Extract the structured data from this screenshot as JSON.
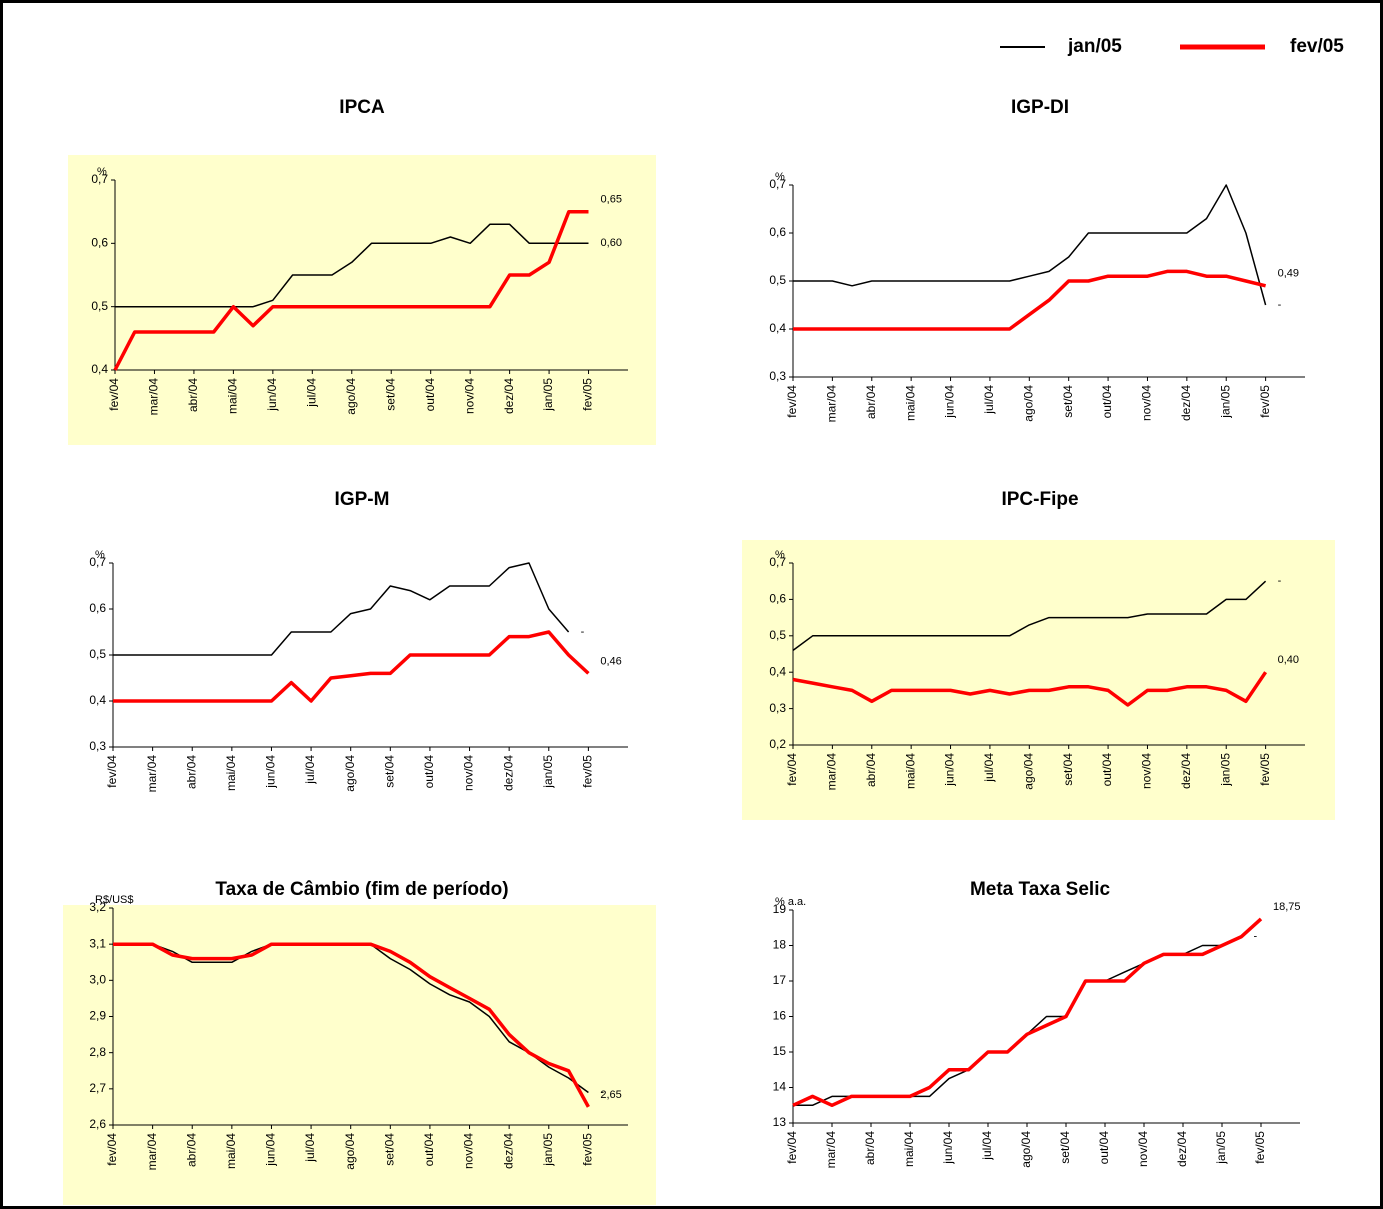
{
  "chart_data": [
    {
      "type": "line",
      "title": "IPCA",
      "y_label": "%",
      "background": "#ffffcc",
      "categories": [
        "fev/04",
        null,
        "mar/04",
        null,
        "abr/04",
        null,
        "mai/04",
        null,
        "jun/04",
        null,
        "jul/04",
        null,
        "ago/04",
        null,
        "set/04",
        null,
        "out/04",
        null,
        "nov/04",
        null,
        "dez/04",
        null,
        "jan/05",
        null,
        "fev/05",
        null,
        null
      ],
      "ylim": [
        0.4,
        0.7
      ],
      "yticks": [
        {
          "value": 0.4,
          "label": "0,4"
        },
        {
          "value": 0.5,
          "label": "0,5"
        },
        {
          "value": 0.6,
          "label": "0,6"
        },
        {
          "value": 0.7,
          "label": "0,7"
        }
      ],
      "series": [
        {
          "name": "jan/05",
          "color": "#000000",
          "end_label": "0,60",
          "values": [
            0.5,
            0.5,
            0.5,
            0.5,
            0.5,
            0.5,
            0.5,
            0.5,
            0.51,
            0.55,
            0.55,
            0.55,
            0.57,
            0.6,
            0.6,
            0.6,
            0.6,
            0.61,
            0.6,
            0.63,
            0.63,
            0.6,
            0.6,
            0.6,
            0.6,
            null,
            null
          ]
        },
        {
          "name": "fev/05",
          "color": "#ff0000",
          "end_label": "0,65",
          "values": [
            0.4,
            0.46,
            0.46,
            0.46,
            0.46,
            0.46,
            0.5,
            0.47,
            0.5,
            0.5,
            0.5,
            0.5,
            0.5,
            0.5,
            0.5,
            0.5,
            0.5,
            0.5,
            0.5,
            0.5,
            0.55,
            0.55,
            0.57,
            0.65,
            0.65,
            null,
            null
          ]
        }
      ]
    },
    {
      "type": "line",
      "title": "IGP-DI",
      "y_label": "%",
      "background": null,
      "categories": [
        "fev/04",
        null,
        "mar/04",
        null,
        "abr/04",
        null,
        "mai/04",
        null,
        "jun/04",
        null,
        "jul/04",
        null,
        "ago/04",
        null,
        "set/04",
        null,
        "out/04",
        null,
        "nov/04",
        null,
        "dez/04",
        null,
        "jan/05",
        null,
        "fev/05",
        null,
        null
      ],
      "ylim": [
        0.3,
        0.7
      ],
      "yticks": [
        {
          "value": 0.3,
          "label": "0,3"
        },
        {
          "value": 0.4,
          "label": "0,4"
        },
        {
          "value": 0.5,
          "label": "0,5"
        },
        {
          "value": 0.6,
          "label": "0,6"
        },
        {
          "value": 0.7,
          "label": "0,7"
        }
      ],
      "series": [
        {
          "name": "jan/05",
          "color": "#000000",
          "end_label": "-",
          "values": [
            0.5,
            0.5,
            0.5,
            0.49,
            0.5,
            0.5,
            0.5,
            0.5,
            0.5,
            0.5,
            0.5,
            0.5,
            0.51,
            0.52,
            0.55,
            0.6,
            0.6,
            0.6,
            0.6,
            0.6,
            0.6,
            0.63,
            0.7,
            0.6,
            0.45,
            null,
            null
          ]
        },
        {
          "name": "fev/05",
          "color": "#ff0000",
          "end_label": "0,49",
          "values": [
            0.4,
            0.4,
            0.4,
            0.4,
            0.4,
            0.4,
            0.4,
            0.4,
            0.4,
            0.4,
            0.4,
            0.4,
            0.43,
            0.46,
            0.5,
            0.5,
            0.51,
            0.51,
            0.51,
            0.52,
            0.52,
            0.51,
            0.51,
            0.5,
            0.49,
            null,
            null
          ]
        }
      ]
    },
    {
      "type": "line",
      "title": "IGP-M",
      "y_label": "%",
      "background": null,
      "categories": [
        "fev/04",
        null,
        "mar/04",
        null,
        "abr/04",
        null,
        "mai/04",
        null,
        "jun/04",
        null,
        "jul/04",
        null,
        "ago/04",
        null,
        "set/04",
        null,
        "out/04",
        null,
        "nov/04",
        null,
        "dez/04",
        null,
        "jan/05",
        null,
        "fev/05",
        null,
        null
      ],
      "ylim": [
        0.3,
        0.7
      ],
      "yticks": [
        {
          "value": 0.3,
          "label": "0,3"
        },
        {
          "value": 0.4,
          "label": "0,4"
        },
        {
          "value": 0.5,
          "label": "0,5"
        },
        {
          "value": 0.6,
          "label": "0,6"
        },
        {
          "value": 0.7,
          "label": "0,7"
        }
      ],
      "series": [
        {
          "name": "jan/05",
          "color": "#000000",
          "end_label": "-",
          "values": [
            0.5,
            0.5,
            0.5,
            0.5,
            0.5,
            0.5,
            0.5,
            0.5,
            0.5,
            0.55,
            0.55,
            0.55,
            0.59,
            0.6,
            0.65,
            0.64,
            0.62,
            0.65,
            0.65,
            0.65,
            0.69,
            0.7,
            0.6,
            0.55,
            null,
            null,
            null
          ]
        },
        {
          "name": "fev/05",
          "color": "#ff0000",
          "end_label": "0,46",
          "values": [
            0.4,
            0.4,
            0.4,
            0.4,
            0.4,
            0.4,
            0.4,
            0.4,
            0.4,
            0.44,
            0.4,
            0.45,
            0.455,
            0.46,
            0.46,
            0.5,
            0.5,
            0.5,
            0.5,
            0.5,
            0.54,
            0.54,
            0.55,
            0.5,
            0.46,
            null,
            null
          ]
        }
      ]
    },
    {
      "type": "line",
      "title": "IPC-Fipe",
      "y_label": "%",
      "background": "#ffffcc",
      "categories": [
        "fev/04",
        null,
        "mar/04",
        null,
        "abr/04",
        null,
        "mai/04",
        null,
        "jun/04",
        null,
        "jul/04",
        null,
        "ago/04",
        null,
        "set/04",
        null,
        "out/04",
        null,
        "nov/04",
        null,
        "dez/04",
        null,
        "jan/05",
        null,
        "fev/05",
        null,
        null
      ],
      "ylim": [
        0.2,
        0.7
      ],
      "yticks": [
        {
          "value": 0.2,
          "label": "0,2"
        },
        {
          "value": 0.3,
          "label": "0,3"
        },
        {
          "value": 0.4,
          "label": "0,4"
        },
        {
          "value": 0.5,
          "label": "0,5"
        },
        {
          "value": 0.6,
          "label": "0,6"
        },
        {
          "value": 0.7,
          "label": "0,7"
        }
      ],
      "series": [
        {
          "name": "jan/05",
          "color": "#000000",
          "end_label": "-",
          "values": [
            0.46,
            0.5,
            0.5,
            0.5,
            0.5,
            0.5,
            0.5,
            0.5,
            0.5,
            0.5,
            0.5,
            0.5,
            0.53,
            0.55,
            0.55,
            0.55,
            0.55,
            0.55,
            0.56,
            0.56,
            0.56,
            0.56,
            0.6,
            0.6,
            0.65,
            null,
            null
          ]
        },
        {
          "name": "fev/05",
          "color": "#ff0000",
          "end_label": "0,40",
          "values": [
            0.38,
            0.37,
            0.36,
            0.35,
            0.32,
            0.35,
            0.35,
            0.35,
            0.35,
            0.34,
            0.35,
            0.34,
            0.35,
            0.35,
            0.36,
            0.36,
            0.35,
            0.31,
            0.35,
            0.35,
            0.36,
            0.36,
            0.35,
            0.32,
            0.4,
            null,
            null
          ]
        }
      ]
    },
    {
      "type": "line",
      "title": "Taxa de Câmbio (fim de período)",
      "y_label": "R$/US$",
      "background": "#ffffcc",
      "categories": [
        "fev/04",
        null,
        "mar/04",
        null,
        "abr/04",
        null,
        "mai/04",
        null,
        "jun/04",
        null,
        "jul/04",
        null,
        "ago/04",
        null,
        "set/04",
        null,
        "out/04",
        null,
        "nov/04",
        null,
        "dez/04",
        null,
        "jan/05",
        null,
        "fev/05",
        null,
        null
      ],
      "ylim": [
        2.6,
        3.2
      ],
      "yticks": [
        {
          "value": 2.6,
          "label": "2,6"
        },
        {
          "value": 2.7,
          "label": "2,7"
        },
        {
          "value": 2.8,
          "label": "2,8"
        },
        {
          "value": 2.9,
          "label": "2,9"
        },
        {
          "value": 3.0,
          "label": "3,0"
        },
        {
          "value": 3.1,
          "label": "3,1"
        },
        {
          "value": 3.2,
          "label": "3,2"
        }
      ],
      "series": [
        {
          "name": "jan/05",
          "color": "#000000",
          "end_label": "-",
          "values": [
            3.1,
            3.1,
            3.1,
            3.08,
            3.05,
            3.05,
            3.05,
            3.08,
            3.1,
            3.1,
            3.1,
            3.1,
            3.1,
            3.1,
            3.06,
            3.03,
            2.99,
            2.96,
            2.94,
            2.9,
            2.83,
            2.8,
            2.76,
            2.73,
            2.69,
            null,
            null
          ]
        },
        {
          "name": "fev/05",
          "color": "#ff0000",
          "end_label": "2,65",
          "values": [
            3.1,
            3.1,
            3.1,
            3.07,
            3.06,
            3.06,
            3.06,
            3.07,
            3.1,
            3.1,
            3.1,
            3.1,
            3.1,
            3.1,
            3.08,
            3.05,
            3.01,
            2.98,
            2.95,
            2.92,
            2.85,
            2.8,
            2.77,
            2.75,
            2.65,
            null,
            null
          ]
        }
      ]
    },
    {
      "type": "line",
      "title": "Meta Taxa Selic",
      "y_label": "% a.a.",
      "background": null,
      "categories": [
        "fev/04",
        null,
        "mar/04",
        null,
        "abr/04",
        null,
        "mai/04",
        null,
        "jun/04",
        null,
        "jul/04",
        null,
        "ago/04",
        null,
        "set/04",
        null,
        "out/04",
        null,
        "nov/04",
        null,
        "dez/04",
        null,
        "jan/05",
        null,
        "fev/05",
        null,
        null
      ],
      "ylim": [
        13,
        19
      ],
      "yticks": [
        13,
        14,
        15,
        16,
        17,
        18,
        19
      ],
      "series": [
        {
          "name": "jan/05",
          "color": "#000000",
          "end_label": "-",
          "values": [
            13.5,
            13.5,
            13.75,
            13.75,
            13.75,
            13.75,
            13.75,
            13.75,
            14.25,
            14.5,
            15,
            15,
            15.5,
            16,
            16,
            17,
            17,
            17.25,
            17.5,
            17.75,
            17.75,
            18,
            18,
            18.25,
            null,
            null,
            null
          ]
        },
        {
          "name": "fev/05",
          "color": "#ff0000",
          "end_label": "18,75",
          "values": [
            13.5,
            13.75,
            13.5,
            13.75,
            13.75,
            13.75,
            13.75,
            14,
            14.5,
            14.5,
            15,
            15,
            15.5,
            15.75,
            16,
            17,
            17,
            17,
            17.5,
            17.75,
            17.75,
            17.75,
            18,
            18.25,
            18.75,
            null,
            null
          ]
        }
      ]
    }
  ]
}
